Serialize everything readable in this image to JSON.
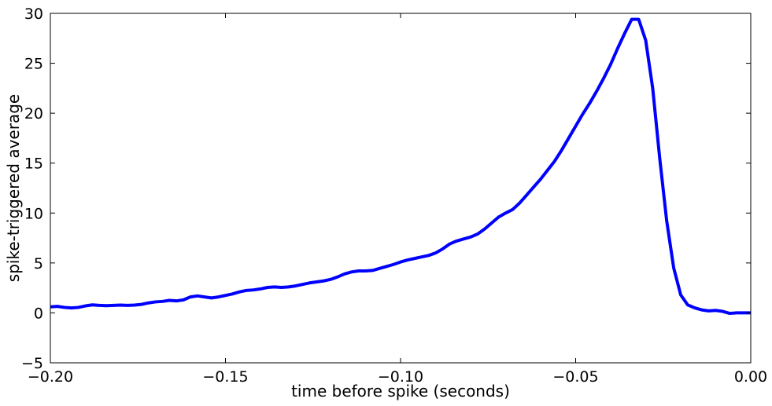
{
  "chart_data": {
    "type": "line",
    "title": "",
    "xlabel": "time before spike (seconds)",
    "ylabel": "spike-triggered average",
    "xlim": [
      -0.2,
      0.0
    ],
    "ylim": [
      -5,
      30
    ],
    "xticks": [
      -0.2,
      -0.15,
      -0.1,
      -0.05,
      0.0
    ],
    "xtick_labels": [
      "−0.20",
      "−0.15",
      "−0.10",
      "−0.05",
      "0.00"
    ],
    "yticks": [
      -5,
      0,
      5,
      10,
      15,
      20,
      25,
      30
    ],
    "ytick_labels": [
      "−5",
      "0",
      "5",
      "10",
      "15",
      "20",
      "25",
      "30"
    ],
    "grid": false,
    "legend": "none",
    "series": [
      {
        "color": "#0000ff",
        "x": [
          -0.2,
          -0.198,
          -0.196,
          -0.194,
          -0.192,
          -0.19,
          -0.188,
          -0.186,
          -0.184,
          -0.182,
          -0.18,
          -0.178,
          -0.176,
          -0.174,
          -0.172,
          -0.17,
          -0.168,
          -0.166,
          -0.164,
          -0.162,
          -0.16,
          -0.158,
          -0.156,
          -0.154,
          -0.152,
          -0.15,
          -0.148,
          -0.146,
          -0.144,
          -0.142,
          -0.14,
          -0.138,
          -0.136,
          -0.134,
          -0.132,
          -0.13,
          -0.128,
          -0.126,
          -0.124,
          -0.122,
          -0.12,
          -0.118,
          -0.116,
          -0.114,
          -0.112,
          -0.11,
          -0.108,
          -0.106,
          -0.104,
          -0.102,
          -0.1,
          -0.098,
          -0.096,
          -0.094,
          -0.092,
          -0.09,
          -0.088,
          -0.086,
          -0.084,
          -0.082,
          -0.08,
          -0.078,
          -0.076,
          -0.074,
          -0.072,
          -0.07,
          -0.068,
          -0.066,
          -0.064,
          -0.062,
          -0.06,
          -0.058,
          -0.056,
          -0.054,
          -0.052,
          -0.05,
          -0.048,
          -0.046,
          -0.044,
          -0.042,
          -0.04,
          -0.038,
          -0.036,
          -0.034,
          -0.032,
          -0.03,
          -0.028,
          -0.026,
          -0.024,
          -0.022,
          -0.02,
          -0.018,
          -0.016,
          -0.014,
          -0.012,
          -0.01,
          -0.008,
          -0.006,
          -0.004,
          -0.002,
          0.0
        ],
        "y": [
          0.6,
          0.65,
          0.55,
          0.5,
          0.55,
          0.7,
          0.8,
          0.75,
          0.72,
          0.75,
          0.78,
          0.75,
          0.78,
          0.85,
          1.0,
          1.1,
          1.15,
          1.25,
          1.2,
          1.3,
          1.6,
          1.7,
          1.6,
          1.5,
          1.6,
          1.75,
          1.9,
          2.1,
          2.25,
          2.3,
          2.4,
          2.55,
          2.6,
          2.55,
          2.6,
          2.7,
          2.85,
          3.0,
          3.1,
          3.2,
          3.35,
          3.6,
          3.9,
          4.1,
          4.2,
          4.2,
          4.25,
          4.45,
          4.65,
          4.85,
          5.1,
          5.3,
          5.45,
          5.6,
          5.75,
          6.0,
          6.4,
          6.9,
          7.2,
          7.4,
          7.6,
          7.9,
          8.4,
          9.0,
          9.6,
          10.0,
          10.35,
          11.0,
          11.8,
          12.6,
          13.4,
          14.3,
          15.2,
          16.3,
          17.5,
          18.7,
          19.9,
          21.0,
          22.2,
          23.5,
          24.9,
          26.5,
          28.0,
          29.4,
          29.4,
          27.3,
          22.5,
          15.5,
          9.2,
          4.5,
          1.8,
          0.8,
          0.5,
          0.3,
          0.2,
          0.25,
          0.15,
          -0.05,
          0.0,
          0.0,
          0.0
        ]
      }
    ]
  }
}
